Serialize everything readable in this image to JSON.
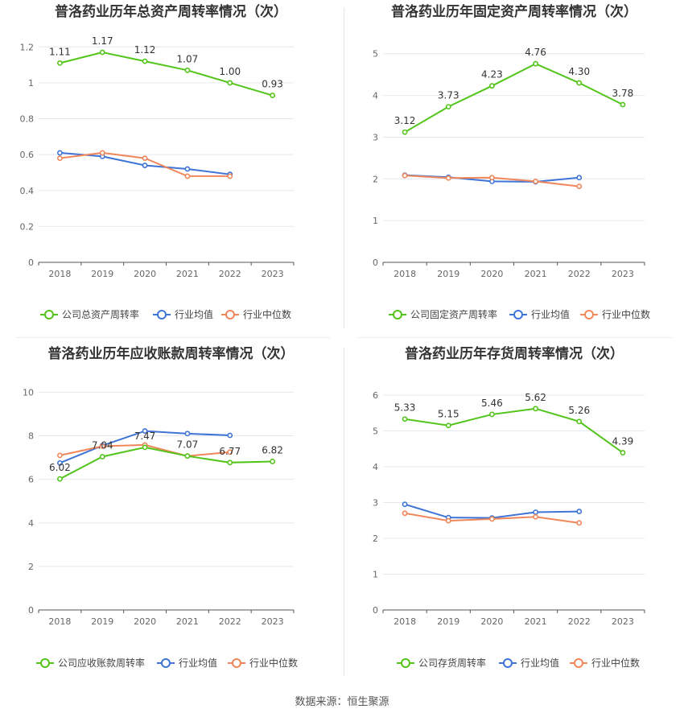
{
  "footer": {
    "source": "数据来源：恒生聚源"
  },
  "colors": {
    "company": "#52c41a",
    "avg": "#3e74d6",
    "median": "#f0875a",
    "grid": "#e6e6f0",
    "axis": "#555555"
  },
  "chart_data": [
    {
      "type": "line",
      "title": "普洛药业历年总资产周转率情况（次）",
      "categories": [
        "2018",
        "2019",
        "2020",
        "2021",
        "2022",
        "2023"
      ],
      "yticks": [
        "0",
        "0.2",
        "0.4",
        "0.6",
        "0.8",
        "1",
        "1.2"
      ],
      "ylim": [
        0,
        1.3
      ],
      "series": [
        {
          "name": "公司总资产周转率",
          "values": [
            1.11,
            1.17,
            1.12,
            1.07,
            1.0,
            0.93
          ],
          "labels": [
            "1.11",
            "1.17",
            "1.12",
            "1.07",
            "1.00",
            "0.93"
          ]
        },
        {
          "name": "行业均值",
          "values": [
            0.61,
            0.59,
            0.54,
            0.52,
            0.49,
            null
          ]
        },
        {
          "name": "行业中位数",
          "values": [
            0.58,
            0.61,
            0.58,
            0.48,
            0.48,
            null
          ]
        }
      ]
    },
    {
      "type": "line",
      "title": "普洛药业历年固定资产周转率情况（次）",
      "categories": [
        "2018",
        "2019",
        "2020",
        "2021",
        "2022",
        "2023"
      ],
      "yticks": [
        "0",
        "1",
        "2",
        "3",
        "4",
        "5"
      ],
      "ylim": [
        0,
        5.4
      ],
      "series": [
        {
          "name": "公司固定资产周转率",
          "values": [
            3.12,
            3.73,
            4.23,
            4.76,
            4.3,
            3.78
          ],
          "labels": [
            "3.12",
            "3.73",
            "4.23",
            "4.76",
            "4.30",
            "3.78"
          ]
        },
        {
          "name": "行业均值",
          "values": [
            2.09,
            2.04,
            1.94,
            1.93,
            2.03,
            null
          ]
        },
        {
          "name": "行业中位数",
          "values": [
            2.08,
            2.02,
            2.03,
            1.94,
            1.82,
            null
          ]
        }
      ]
    },
    {
      "type": "line",
      "title": "普洛药业历年应收账款周转率情况（次）",
      "categories": [
        "2018",
        "2019",
        "2020",
        "2021",
        "2022",
        "2023"
      ],
      "yticks": [
        "0",
        "2",
        "4",
        "6",
        "8",
        "10"
      ],
      "ylim": [
        0,
        10.2
      ],
      "series": [
        {
          "name": "公司应收账款周转率",
          "values": [
            6.02,
            7.04,
            7.47,
            7.07,
            6.77,
            6.82
          ],
          "labels": [
            "6.02",
            "7.04",
            "7.47",
            "7.07",
            "6.77",
            "6.82"
          ]
        },
        {
          "name": "行业均值",
          "values": [
            6.75,
            7.55,
            8.22,
            8.1,
            8.02,
            null
          ]
        },
        {
          "name": "行业中位数",
          "values": [
            7.1,
            7.52,
            7.58,
            7.07,
            7.25,
            null
          ]
        }
      ]
    },
    {
      "type": "line",
      "title": "普洛药业历年存货周转率情况（次）",
      "categories": [
        "2018",
        "2019",
        "2020",
        "2021",
        "2022",
        "2023"
      ],
      "yticks": [
        "0",
        "1",
        "2",
        "3",
        "4",
        "5",
        "6"
      ],
      "ylim": [
        0,
        6.2
      ],
      "series": [
        {
          "name": "公司存货周转率",
          "values": [
            5.33,
            5.15,
            5.46,
            5.62,
            5.26,
            4.39
          ],
          "labels": [
            "5.33",
            "5.15",
            "5.46",
            "5.62",
            "5.26",
            "4.39"
          ]
        },
        {
          "name": "行业均值",
          "values": [
            2.95,
            2.58,
            2.57,
            2.73,
            2.75,
            null
          ]
        },
        {
          "name": "行业中位数",
          "values": [
            2.7,
            2.49,
            2.54,
            2.6,
            2.43,
            null
          ]
        }
      ]
    }
  ]
}
